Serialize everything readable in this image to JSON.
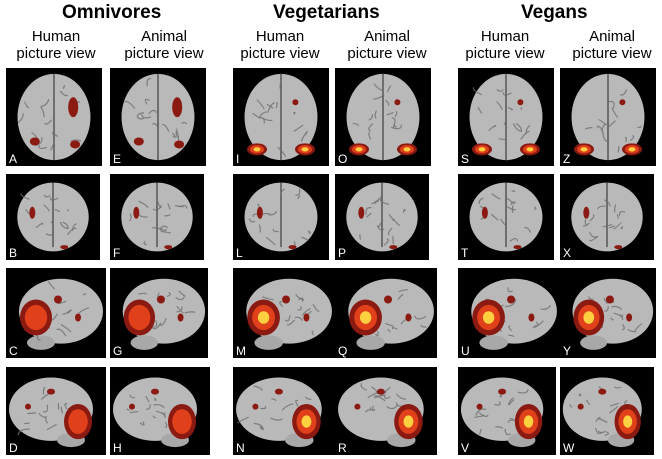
{
  "groups": [
    {
      "title": "Omnivores"
    },
    {
      "title": "Vegetarians"
    },
    {
      "title": "Vegans"
    }
  ],
  "column_labels": [
    {
      "line1": "Human",
      "line2": "picture view"
    },
    {
      "line1": "Animal",
      "line2": "picture view"
    },
    {
      "line1": "Human",
      "line2": "picture view"
    },
    {
      "line1": "Animal",
      "line2": "picture view"
    },
    {
      "line1": "Human",
      "line2": "picture view"
    },
    {
      "line1": "Animal",
      "line2": "picture view"
    }
  ],
  "rows": [
    {
      "view": "top",
      "letters": [
        "A",
        "E",
        "I",
        "O",
        "S",
        "Z"
      ]
    },
    {
      "view": "back",
      "letters": [
        "B",
        "F",
        "L",
        "P",
        "T",
        "X"
      ]
    },
    {
      "view": "left",
      "letters": [
        "C",
        "G",
        "M",
        "Q",
        "U",
        "Y"
      ]
    },
    {
      "view": "right",
      "letters": [
        "D",
        "H",
        "N",
        "R",
        "V",
        "W"
      ]
    }
  ],
  "colors": {
    "background": "#000000",
    "cortex": "#b9b9b9",
    "activation_low": "#8b1a12",
    "activation_mid": "#e0401a",
    "activation_high": "#ffd040"
  }
}
